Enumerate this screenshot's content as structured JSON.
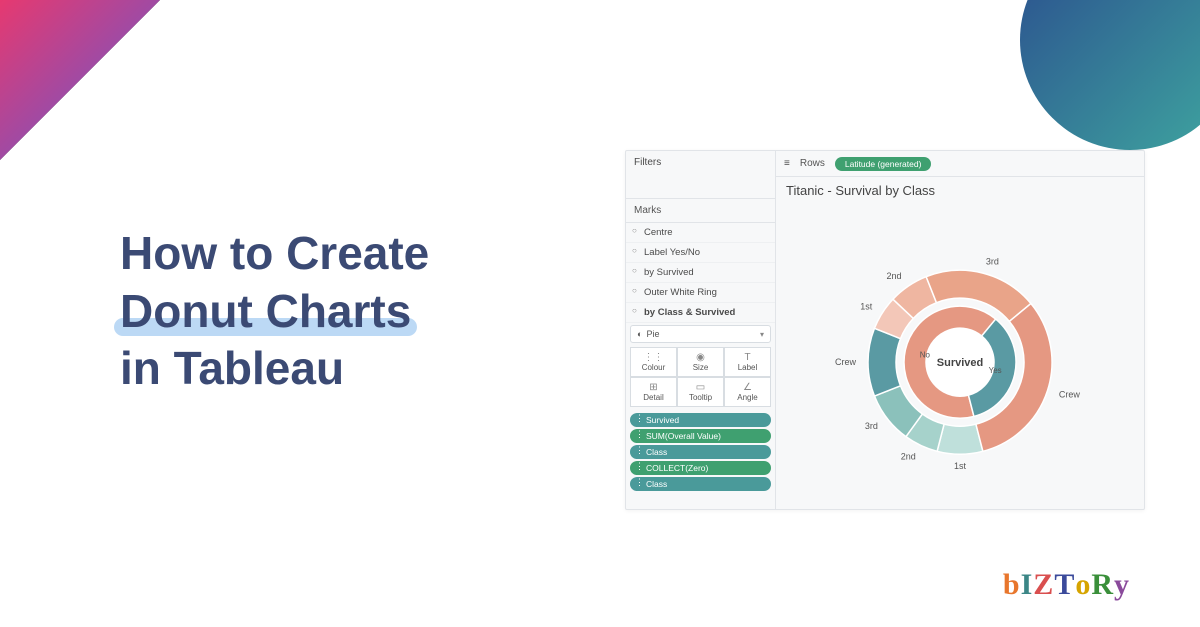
{
  "decor": {
    "tl_gradient_from": "#e63970",
    "tl_gradient_to": "#5b5bd6",
    "tr_gradient_from": "#2a4b8d",
    "tr_gradient_to": "#3fa8a0"
  },
  "headline": {
    "line1": "How to Create",
    "line2_highlight": "Donut Charts",
    "line3": "in Tableau",
    "color": "#3b4a74",
    "highlight_bg": "#bcd9f5",
    "fontsize": 46
  },
  "tableau": {
    "filters_label": "Filters",
    "marks_label": "Marks",
    "rows_label": "Rows",
    "rows_pill": "Latitude (generated)",
    "title": "Titanic - Survival by Class",
    "marks_items": [
      {
        "label": "Centre",
        "bold": false
      },
      {
        "label": "Label Yes/No",
        "bold": false
      },
      {
        "label": "by Survived",
        "bold": false
      },
      {
        "label": "Outer White Ring",
        "bold": false
      },
      {
        "label": "by Class & Survived",
        "bold": true
      }
    ],
    "mark_type": "Pie",
    "cards": [
      {
        "icon": "⋮⋮",
        "label": "Colour"
      },
      {
        "icon": "◉",
        "label": "Size"
      },
      {
        "icon": "T",
        "label": "Label"
      },
      {
        "icon": "⊞",
        "label": "Detail"
      },
      {
        "icon": "▭",
        "label": "Tooltip"
      },
      {
        "icon": "∠",
        "label": "Angle"
      }
    ],
    "pills": [
      {
        "label": "Survived",
        "style": "teal"
      },
      {
        "label": "SUM(Overall Value)",
        "style": "green"
      },
      {
        "label": "Class",
        "style": "teal"
      },
      {
        "label": "COLLECT(Zero)",
        "style": "green"
      },
      {
        "label": "Class",
        "style": "teal"
      }
    ]
  },
  "chart": {
    "type": "donut-nested",
    "center_label": "Survived",
    "inner_labels": {
      "yes": "Yes",
      "no": "No"
    },
    "background": "#ffffff",
    "ring_gap_color": "#ffffff",
    "inner_ring": {
      "r_inner": 34,
      "r_outer": 56,
      "slices": [
        {
          "key": "no",
          "value": 65,
          "color": "#e59882"
        },
        {
          "key": "yes",
          "value": 35,
          "color": "#5a9aa3"
        }
      ]
    },
    "outer_ring": {
      "r_inner": 64,
      "r_outer": 92,
      "slices": [
        {
          "key": "1st-yes",
          "label": "1st",
          "value": 8,
          "color": "#bfe0db"
        },
        {
          "key": "2nd-yes",
          "label": "2nd",
          "value": 6,
          "color": "#a6d2cb"
        },
        {
          "key": "3rd-yes",
          "label": "3rd",
          "value": 9,
          "color": "#8bc1bb"
        },
        {
          "key": "crew-yes",
          "label": "Crew",
          "value": 12,
          "color": "#5a9aa3"
        },
        {
          "key": "1st-no",
          "label": "1st",
          "value": 6,
          "color": "#f3c7b8"
        },
        {
          "key": "2nd-no",
          "label": "2nd",
          "value": 7,
          "color": "#efb6a1"
        },
        {
          "key": "3rd-no",
          "label": "3rd",
          "value": 20,
          "color": "#e9a489"
        },
        {
          "key": "crew-no",
          "label": "Crew",
          "value": 32,
          "color": "#e59882"
        }
      ]
    },
    "label_fontsize": 9
  },
  "logo": {
    "letters": [
      {
        "ch": "b",
        "color": "#e8762c"
      },
      {
        "ch": "I",
        "color": "#3b8686"
      },
      {
        "ch": "Z",
        "color": "#d94f4f"
      },
      {
        "ch": "T",
        "color": "#3b4a9b"
      },
      {
        "ch": "o",
        "color": "#d6a400"
      },
      {
        "ch": "R",
        "color": "#3a8f3a"
      },
      {
        "ch": "y",
        "color": "#8a4a9b"
      }
    ]
  }
}
